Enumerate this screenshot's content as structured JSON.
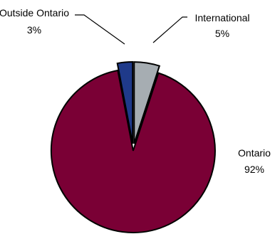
{
  "chart_data": {
    "type": "pie",
    "title": "",
    "exploded": true,
    "slices": [
      {
        "label": "International",
        "percent_label": "5%",
        "value": 5,
        "color": "#A6ADB2"
      },
      {
        "label": "Ontario",
        "percent_label": "92%",
        "value": 92,
        "color": "#7A0035"
      },
      {
        "label": "Outside Ontario",
        "percent_label": "3%",
        "value": 3,
        "color": "#1F3A8A"
      }
    ]
  }
}
